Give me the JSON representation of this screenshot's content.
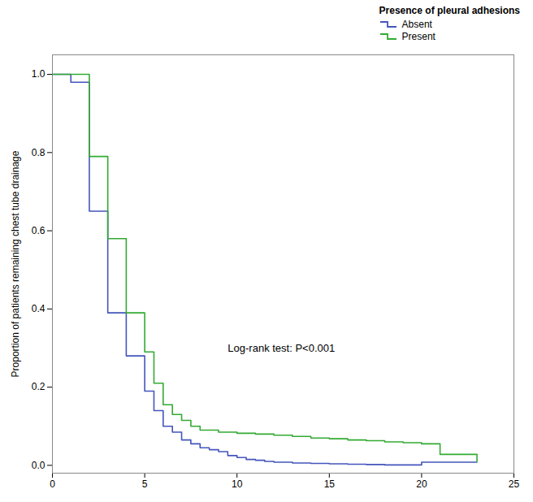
{
  "chart_data": {
    "type": "step",
    "ylabel": "Proportion of patients remaining chest tube drainage",
    "xlim": [
      0,
      25
    ],
    "ylim": [
      -0.02,
      1.05
    ],
    "xticks": [
      0,
      5,
      10,
      15,
      20,
      25
    ],
    "yticks": [
      {
        "value": 0,
        "label": "0.0"
      },
      0.2,
      0.4,
      0.6,
      0.8,
      {
        "value": 1,
        "label": "1.0"
      }
    ],
    "legend": "upper right",
    "legend_title": "Presence of pleural adhesions",
    "annotations": [
      {
        "text": "Log-rank test: P<0.001",
        "x": 9.5,
        "y": 0.3
      }
    ],
    "series": [
      {
        "name": "Absent",
        "color": "#4455bb",
        "x": [
          0,
          1,
          2,
          3,
          4,
          5,
          5.5,
          6,
          6.5,
          7,
          7.5,
          8,
          8.5,
          9,
          9.5,
          10,
          10.5,
          11,
          11.5,
          12,
          13,
          14,
          15,
          16,
          17,
          18,
          19,
          20,
          23
        ],
        "values": [
          1.0,
          0.98,
          0.65,
          0.39,
          0.28,
          0.19,
          0.14,
          0.1,
          0.085,
          0.065,
          0.055,
          0.045,
          0.04,
          0.035,
          0.025,
          0.02,
          0.015,
          0.013,
          0.01,
          0.008,
          0.006,
          0.005,
          0.004,
          0.003,
          0.002,
          0.001,
          0.001,
          0.008,
          0.008
        ]
      },
      {
        "name": "Present",
        "color": "#33aa33",
        "x": [
          0,
          2,
          3,
          4,
          5,
          5.5,
          6,
          6.5,
          7,
          7.5,
          8,
          9,
          10,
          11,
          12,
          13,
          14,
          15,
          16,
          17,
          18,
          19,
          20,
          21,
          23
        ],
        "values": [
          1.0,
          0.79,
          0.58,
          0.39,
          0.29,
          0.21,
          0.155,
          0.13,
          0.115,
          0.1,
          0.09,
          0.085,
          0.082,
          0.08,
          0.077,
          0.074,
          0.07,
          0.068,
          0.065,
          0.063,
          0.06,
          0.058,
          0.055,
          0.028,
          0.01
        ]
      }
    ]
  }
}
